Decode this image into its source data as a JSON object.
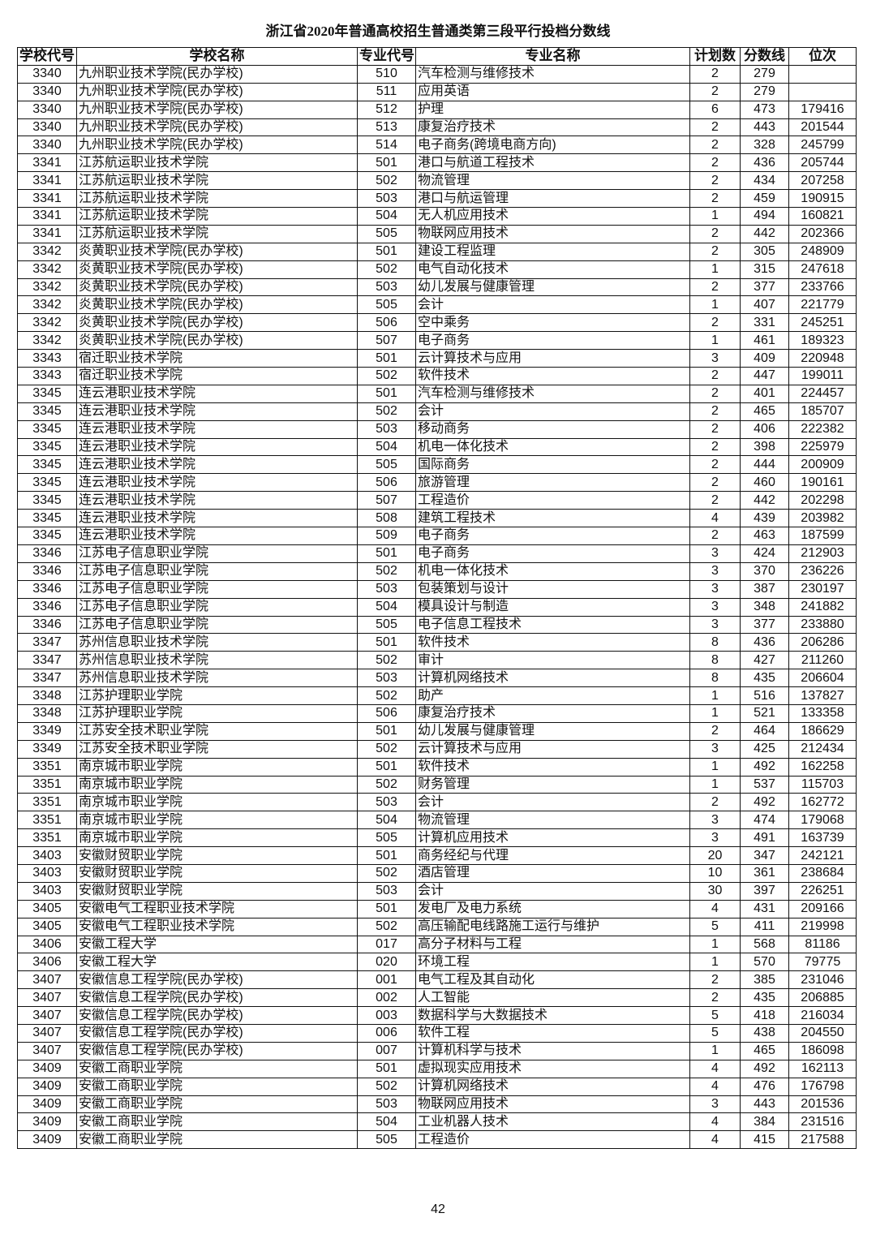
{
  "title": "浙江省2020年普通高校招生普通类第三段平行投档分数线",
  "columns": [
    "学校代号",
    "学校名称",
    "专业代号",
    "专业名称",
    "计划数",
    "分数线",
    "位次"
  ],
  "rows": [
    [
      "3340",
      "九州职业技术学院(民办学校)",
      "510",
      "汽车检测与维修技术",
      "2",
      "279",
      ""
    ],
    [
      "3340",
      "九州职业技术学院(民办学校)",
      "511",
      "应用英语",
      "2",
      "279",
      ""
    ],
    [
      "3340",
      "九州职业技术学院(民办学校)",
      "512",
      "护理",
      "6",
      "473",
      "179416"
    ],
    [
      "3340",
      "九州职业技术学院(民办学校)",
      "513",
      "康复治疗技术",
      "2",
      "443",
      "201544"
    ],
    [
      "3340",
      "九州职业技术学院(民办学校)",
      "514",
      "电子商务(跨境电商方向)",
      "2",
      "328",
      "245799"
    ],
    [
      "3341",
      "江苏航运职业技术学院",
      "501",
      "港口与航道工程技术",
      "2",
      "436",
      "205744"
    ],
    [
      "3341",
      "江苏航运职业技术学院",
      "502",
      "物流管理",
      "2",
      "434",
      "207258"
    ],
    [
      "3341",
      "江苏航运职业技术学院",
      "503",
      "港口与航运管理",
      "2",
      "459",
      "190915"
    ],
    [
      "3341",
      "江苏航运职业技术学院",
      "504",
      "无人机应用技术",
      "1",
      "494",
      "160821"
    ],
    [
      "3341",
      "江苏航运职业技术学院",
      "505",
      "物联网应用技术",
      "2",
      "442",
      "202366"
    ],
    [
      "3342",
      "炎黄职业技术学院(民办学校)",
      "501",
      "建设工程监理",
      "2",
      "305",
      "248909"
    ],
    [
      "3342",
      "炎黄职业技术学院(民办学校)",
      "502",
      "电气自动化技术",
      "1",
      "315",
      "247618"
    ],
    [
      "3342",
      "炎黄职业技术学院(民办学校)",
      "503",
      "幼儿发展与健康管理",
      "2",
      "377",
      "233766"
    ],
    [
      "3342",
      "炎黄职业技术学院(民办学校)",
      "505",
      "会计",
      "1",
      "407",
      "221779"
    ],
    [
      "3342",
      "炎黄职业技术学院(民办学校)",
      "506",
      "空中乘务",
      "2",
      "331",
      "245251"
    ],
    [
      "3342",
      "炎黄职业技术学院(民办学校)",
      "507",
      "电子商务",
      "1",
      "461",
      "189323"
    ],
    [
      "3343",
      "宿迁职业技术学院",
      "501",
      "云计算技术与应用",
      "3",
      "409",
      "220948"
    ],
    [
      "3343",
      "宿迁职业技术学院",
      "502",
      "软件技术",
      "2",
      "447",
      "199011"
    ],
    [
      "3345",
      "连云港职业技术学院",
      "501",
      "汽车检测与维修技术",
      "2",
      "401",
      "224457"
    ],
    [
      "3345",
      "连云港职业技术学院",
      "502",
      "会计",
      "2",
      "465",
      "185707"
    ],
    [
      "3345",
      "连云港职业技术学院",
      "503",
      "移动商务",
      "2",
      "406",
      "222382"
    ],
    [
      "3345",
      "连云港职业技术学院",
      "504",
      "机电一体化技术",
      "2",
      "398",
      "225979"
    ],
    [
      "3345",
      "连云港职业技术学院",
      "505",
      "国际商务",
      "2",
      "444",
      "200909"
    ],
    [
      "3345",
      "连云港职业技术学院",
      "506",
      "旅游管理",
      "2",
      "460",
      "190161"
    ],
    [
      "3345",
      "连云港职业技术学院",
      "507",
      "工程造价",
      "2",
      "442",
      "202298"
    ],
    [
      "3345",
      "连云港职业技术学院",
      "508",
      "建筑工程技术",
      "4",
      "439",
      "203982"
    ],
    [
      "3345",
      "连云港职业技术学院",
      "509",
      "电子商务",
      "2",
      "463",
      "187599"
    ],
    [
      "3346",
      "江苏电子信息职业学院",
      "501",
      "电子商务",
      "3",
      "424",
      "212903"
    ],
    [
      "3346",
      "江苏电子信息职业学院",
      "502",
      "机电一体化技术",
      "3",
      "370",
      "236226"
    ],
    [
      "3346",
      "江苏电子信息职业学院",
      "503",
      "包装策划与设计",
      "3",
      "387",
      "230197"
    ],
    [
      "3346",
      "江苏电子信息职业学院",
      "504",
      "模具设计与制造",
      "3",
      "348",
      "241882"
    ],
    [
      "3346",
      "江苏电子信息职业学院",
      "505",
      "电子信息工程技术",
      "3",
      "377",
      "233880"
    ],
    [
      "3347",
      "苏州信息职业技术学院",
      "501",
      "软件技术",
      "8",
      "436",
      "206286"
    ],
    [
      "3347",
      "苏州信息职业技术学院",
      "502",
      "审计",
      "8",
      "427",
      "211260"
    ],
    [
      "3347",
      "苏州信息职业技术学院",
      "503",
      "计算机网络技术",
      "8",
      "435",
      "206604"
    ],
    [
      "3348",
      "江苏护理职业学院",
      "502",
      "助产",
      "1",
      "516",
      "137827"
    ],
    [
      "3348",
      "江苏护理职业学院",
      "506",
      "康复治疗技术",
      "1",
      "521",
      "133358"
    ],
    [
      "3349",
      "江苏安全技术职业学院",
      "501",
      "幼儿发展与健康管理",
      "2",
      "464",
      "186629"
    ],
    [
      "3349",
      "江苏安全技术职业学院",
      "502",
      "云计算技术与应用",
      "3",
      "425",
      "212434"
    ],
    [
      "3351",
      "南京城市职业学院",
      "501",
      "软件技术",
      "1",
      "492",
      "162258"
    ],
    [
      "3351",
      "南京城市职业学院",
      "502",
      "财务管理",
      "1",
      "537",
      "115703"
    ],
    [
      "3351",
      "南京城市职业学院",
      "503",
      "会计",
      "2",
      "492",
      "162772"
    ],
    [
      "3351",
      "南京城市职业学院",
      "504",
      "物流管理",
      "3",
      "474",
      "179068"
    ],
    [
      "3351",
      "南京城市职业学院",
      "505",
      "计算机应用技术",
      "3",
      "491",
      "163739"
    ],
    [
      "3403",
      "安徽财贸职业学院",
      "501",
      "商务经纪与代理",
      "20",
      "347",
      "242121"
    ],
    [
      "3403",
      "安徽财贸职业学院",
      "502",
      "酒店管理",
      "10",
      "361",
      "238684"
    ],
    [
      "3403",
      "安徽财贸职业学院",
      "503",
      "会计",
      "30",
      "397",
      "226251"
    ],
    [
      "3405",
      "安徽电气工程职业技术学院",
      "501",
      "发电厂及电力系统",
      "4",
      "431",
      "209166"
    ],
    [
      "3405",
      "安徽电气工程职业技术学院",
      "502",
      "高压输配电线路施工运行与维护",
      "5",
      "411",
      "219998"
    ],
    [
      "3406",
      "安徽工程大学",
      "017",
      "高分子材料与工程",
      "1",
      "568",
      "81186"
    ],
    [
      "3406",
      "安徽工程大学",
      "020",
      "环境工程",
      "1",
      "570",
      "79775"
    ],
    [
      "3407",
      "安徽信息工程学院(民办学校)",
      "001",
      "电气工程及其自动化",
      "2",
      "385",
      "231046"
    ],
    [
      "3407",
      "安徽信息工程学院(民办学校)",
      "002",
      "人工智能",
      "2",
      "435",
      "206885"
    ],
    [
      "3407",
      "安徽信息工程学院(民办学校)",
      "003",
      "数据科学与大数据技术",
      "5",
      "418",
      "216034"
    ],
    [
      "3407",
      "安徽信息工程学院(民办学校)",
      "006",
      "软件工程",
      "5",
      "438",
      "204550"
    ],
    [
      "3407",
      "安徽信息工程学院(民办学校)",
      "007",
      "计算机科学与技术",
      "1",
      "465",
      "186098"
    ],
    [
      "3409",
      "安徽工商职业学院",
      "501",
      "虚拟现实应用技术",
      "4",
      "492",
      "162113"
    ],
    [
      "3409",
      "安徽工商职业学院",
      "502",
      "计算机网络技术",
      "4",
      "476",
      "176798"
    ],
    [
      "3409",
      "安徽工商职业学院",
      "503",
      "物联网应用技术",
      "3",
      "443",
      "201536"
    ],
    [
      "3409",
      "安徽工商职业学院",
      "504",
      "工业机器人技术",
      "4",
      "384",
      "231516"
    ],
    [
      "3409",
      "安徽工商职业学院",
      "505",
      "工程造价",
      "4",
      "415",
      "217588"
    ]
  ],
  "page_number": "42"
}
